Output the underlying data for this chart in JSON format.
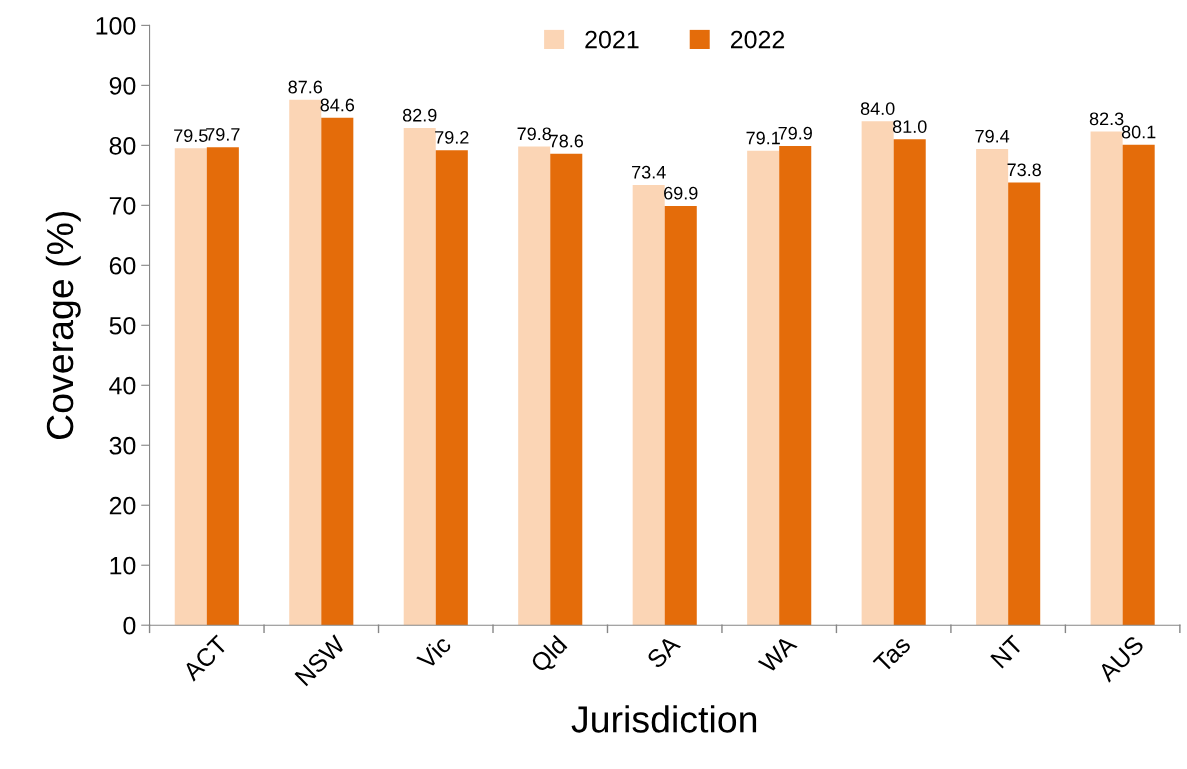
{
  "chart_data": {
    "type": "bar",
    "xlabel": "Jurisdiction",
    "ylabel": "Coverage (%)",
    "categories": [
      "ACT",
      "NSW",
      "Vic",
      "Qld",
      "SA",
      "WA",
      "Tas",
      "NT",
      "AUS"
    ],
    "series": [
      {
        "name": "2021",
        "color": "#fbd5b5",
        "values": [
          79.5,
          87.6,
          82.9,
          79.8,
          73.4,
          79.1,
          84.0,
          79.4,
          82.3
        ],
        "value_labels": [
          "79.5",
          "87.6",
          "82.9",
          "79.8",
          "73.4",
          "79.1",
          "84.0",
          "79.4",
          "82.3"
        ]
      },
      {
        "name": "2022",
        "color": "#e46c0a",
        "values": [
          79.7,
          84.6,
          79.2,
          78.6,
          69.9,
          79.9,
          81.0,
          73.8,
          80.1
        ],
        "value_labels": [
          "79.7",
          "84.6",
          "79.2",
          "78.6",
          "69.9",
          "79.9",
          "81.0",
          "73.8",
          "80.1"
        ]
      }
    ],
    "ylim": [
      0,
      100
    ],
    "yticks": [
      0,
      10,
      20,
      30,
      40,
      50,
      60,
      70,
      80,
      90,
      100
    ],
    "grid": false,
    "legend": "top"
  }
}
